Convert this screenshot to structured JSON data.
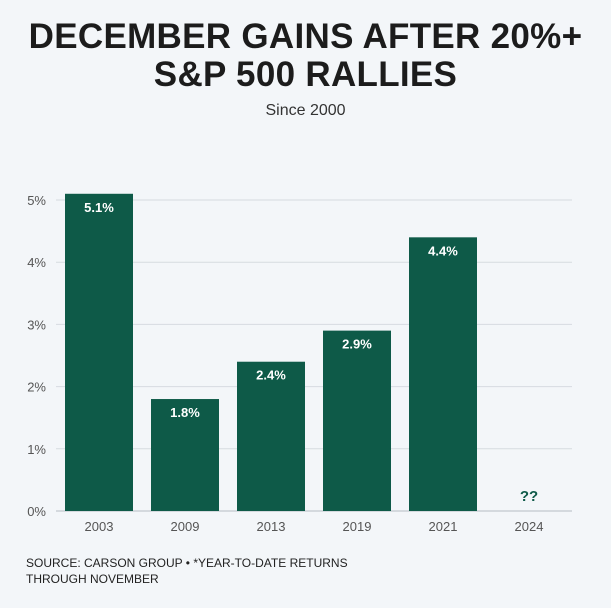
{
  "title_lines": [
    "DECEMBER GAINS AFTER 20%+",
    "S&P 500 RALLIES"
  ],
  "subtitle": "Since 2000",
  "source_lines": [
    "SOURCE: CARSON GROUP • *YEAR-TO-DATE RETURNS",
    "THROUGH NOVEMBER"
  ],
  "colors": {
    "bar": "#0e5a48",
    "grid": "#d6dbe0",
    "background": "#f3f6f9"
  },
  "chart_data": {
    "type": "bar",
    "title": "DECEMBER GAINS AFTER 20%+ S&P 500 RALLIES",
    "subtitle": "Since 2000",
    "categories": [
      "2003",
      "2009",
      "2013",
      "2019",
      "2021",
      "2024"
    ],
    "values": [
      5.1,
      1.8,
      2.4,
      2.9,
      4.4,
      null
    ],
    "data_labels": [
      "5.1%",
      "1.8%",
      "2.4%",
      "2.9%",
      "4.4%",
      "??"
    ],
    "y_ticks": [
      0,
      1,
      2,
      3,
      4,
      5
    ],
    "y_tick_labels": [
      "0%",
      "1%",
      "2%",
      "3%",
      "4%",
      "5%"
    ],
    "ylim": [
      0,
      5
    ],
    "grid": true,
    "xlabel": "",
    "ylabel": ""
  }
}
